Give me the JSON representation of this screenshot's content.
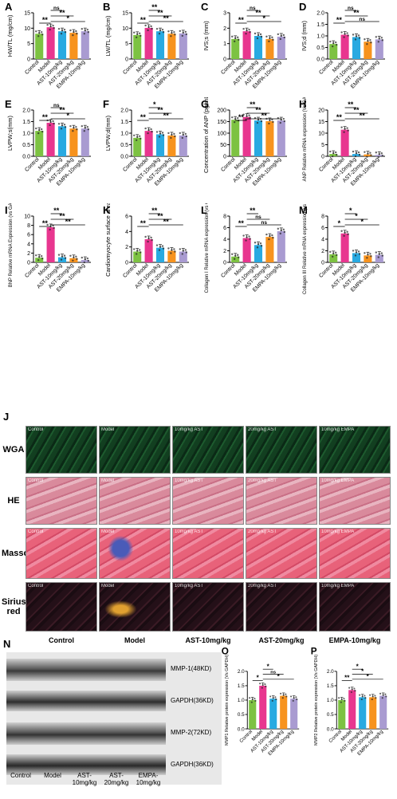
{
  "charts": [
    {
      "id": "A",
      "ylabel": "HW/TL (mg/cm)",
      "yticks": [
        "0",
        "5",
        "10",
        "15"
      ],
      "ymax": 15,
      "values": [
        8.2,
        10.3,
        9.0,
        8.5,
        9.0
      ],
      "sig": [
        {
          "a": 0,
          "b": 1,
          "t": "**"
        },
        {
          "a": 1,
          "b": 2,
          "t": "ns"
        },
        {
          "a": 1,
          "b": 3,
          "t": "**"
        },
        {
          "a": 1,
          "b": 4,
          "t": "*"
        }
      ]
    },
    {
      "id": "B",
      "ylabel": "LW/TL (mg/cm)",
      "yticks": [
        "0",
        "5",
        "10",
        "15"
      ],
      "ymax": 15,
      "values": [
        7.8,
        10.1,
        9.0,
        8.2,
        8.3
      ],
      "sig": [
        {
          "a": 0,
          "b": 1,
          "t": "**"
        },
        {
          "a": 1,
          "b": 2,
          "t": "**"
        },
        {
          "a": 1,
          "b": 3,
          "t": "**"
        },
        {
          "a": 1,
          "b": 4,
          "t": "**"
        }
      ]
    },
    {
      "id": "C",
      "ylabel": "IVS;s (mm)",
      "yticks": [
        "0",
        "1",
        "2",
        "3"
      ],
      "ymax": 3,
      "values": [
        1.3,
        1.8,
        1.5,
        1.3,
        1.45
      ],
      "sig": [
        {
          "a": 0,
          "b": 1,
          "t": "**"
        },
        {
          "a": 1,
          "b": 2,
          "t": "ns"
        },
        {
          "a": 1,
          "b": 3,
          "t": "**"
        },
        {
          "a": 1,
          "b": 4,
          "t": "*"
        }
      ]
    },
    {
      "id": "D",
      "ylabel": "IVS;d (mm)",
      "yticks": [
        "0.0",
        "0.5",
        "1.0",
        "1.5",
        "2.0"
      ],
      "ymax": 2,
      "values": [
        0.65,
        1.05,
        0.95,
        0.75,
        0.85
      ],
      "sig": [
        {
          "a": 0,
          "b": 1,
          "t": "**"
        },
        {
          "a": 1,
          "b": 2,
          "t": "ns"
        },
        {
          "a": 1,
          "b": 3,
          "t": "**"
        },
        {
          "a": 1,
          "b": 4,
          "t": "ns"
        }
      ]
    },
    {
      "id": "E",
      "ylabel": "LVPW;s(mm)",
      "yticks": [
        "0.0",
        "0.5",
        "1.0",
        "1.5",
        "2.0"
      ],
      "ymax": 2,
      "values": [
        1.1,
        1.45,
        1.3,
        1.2,
        1.2
      ],
      "sig": [
        {
          "a": 0,
          "b": 1,
          "t": "**"
        },
        {
          "a": 1,
          "b": 2,
          "t": "ns"
        },
        {
          "a": 1,
          "b": 3,
          "t": "**"
        },
        {
          "a": 1,
          "b": 4,
          "t": "*"
        }
      ]
    },
    {
      "id": "F",
      "ylabel": "LVPW;d(mm)",
      "yticks": [
        "0.0",
        "0.5",
        "1.0",
        "1.5",
        "2.0"
      ],
      "ymax": 2,
      "values": [
        0.8,
        1.1,
        0.95,
        0.9,
        0.9
      ],
      "sig": [
        {
          "a": 0,
          "b": 1,
          "t": "**"
        },
        {
          "a": 1,
          "b": 2,
          "t": "*"
        },
        {
          "a": 1,
          "b": 3,
          "t": "**"
        },
        {
          "a": 1,
          "b": 4,
          "t": "**"
        }
      ]
    },
    {
      "id": "G",
      "ylabel": "Concentration of ANP (pg/mL)",
      "yticks": [
        "0",
        "50",
        "100",
        "150",
        "200"
      ],
      "ymax": 200,
      "values": [
        158,
        170,
        155,
        152,
        155
      ],
      "sig": [
        {
          "a": 0,
          "b": 1,
          "t": "**"
        },
        {
          "a": 1,
          "b": 2,
          "t": "**"
        },
        {
          "a": 1,
          "b": 3,
          "t": "**"
        },
        {
          "a": 1,
          "b": 4,
          "t": "**"
        }
      ]
    },
    {
      "id": "H",
      "ylabel": "ANP Relative mRNA expression (Vs GAPDH)",
      "yticks": [
        "0",
        "5",
        "10",
        "15",
        "20"
      ],
      "ymax": 20,
      "values": [
        1,
        11.5,
        1,
        0.8,
        0.6
      ],
      "sig": [
        {
          "a": 0,
          "b": 1,
          "t": "**"
        },
        {
          "a": 1,
          "b": 2,
          "t": "**"
        },
        {
          "a": 1,
          "b": 3,
          "t": "**"
        },
        {
          "a": 1,
          "b": 4,
          "t": "**"
        }
      ]
    },
    {
      "id": "I",
      "ylabel": "BNP Relative mRNA Expression (vs GAPDH)",
      "yticks": [
        "0",
        "2",
        "4",
        "6",
        "8",
        "10"
      ],
      "ymax": 10,
      "values": [
        1,
        7.6,
        1.1,
        0.9,
        0.5
      ],
      "sig": [
        {
          "a": 0,
          "b": 1,
          "t": "**"
        },
        {
          "a": 1,
          "b": 2,
          "t": "**"
        },
        {
          "a": 1,
          "b": 3,
          "t": "**"
        },
        {
          "a": 1,
          "b": 4,
          "t": "**"
        }
      ]
    },
    {
      "id": "K",
      "ylabel": "Cardiomyocyte surface area",
      "yticks": [
        "0",
        "2",
        "4",
        "6"
      ],
      "ymax": 6,
      "values": [
        1.4,
        3.0,
        1.9,
        1.5,
        1.4
      ],
      "sig": [
        {
          "a": 0,
          "b": 1,
          "t": "**"
        },
        {
          "a": 1,
          "b": 2,
          "t": "**"
        },
        {
          "a": 1,
          "b": 3,
          "t": "**"
        },
        {
          "a": 1,
          "b": 4,
          "t": "**"
        }
      ]
    },
    {
      "id": "L",
      "ylabel": "Collagen I Relative mRNA expression (vs GAPDH)",
      "yticks": [
        "0",
        "2",
        "4",
        "6",
        "8"
      ],
      "ymax": 8,
      "values": [
        1,
        4.2,
        3,
        4.4,
        5.4
      ],
      "sig": [
        {
          "a": 0,
          "b": 1,
          "t": "**"
        },
        {
          "a": 1,
          "b": 2,
          "t": "**"
        },
        {
          "a": 1,
          "b": 3,
          "t": "ns"
        },
        {
          "a": 1,
          "b": 4,
          "t": "ns"
        }
      ]
    },
    {
      "id": "M",
      "ylabel": "Collagen III Relative mRNA expression (vs GAPDH)",
      "yticks": [
        "0",
        "2",
        "4",
        "6",
        "8"
      ],
      "ymax": 8,
      "values": [
        1.4,
        5.0,
        1.6,
        1.2,
        1.3
      ],
      "sig": [
        {
          "a": 0,
          "b": 1,
          "t": "*"
        },
        {
          "a": 1,
          "b": 2,
          "t": "*"
        },
        {
          "a": 1,
          "b": 3,
          "t": "*"
        },
        {
          "a": 1,
          "b": 4,
          "t": "*"
        }
      ]
    },
    {
      "id": "O",
      "ylabel": "MMP1 Relative protein expression (Vs GAPDH)",
      "yticks": [
        "0.0",
        "0.5",
        "1.0",
        "1.5",
        "2.0"
      ],
      "ymax": 2,
      "values": [
        1.0,
        1.5,
        1.05,
        1.15,
        1.05
      ],
      "sig": [
        {
          "a": 0,
          "b": 1,
          "t": "*"
        },
        {
          "a": 1,
          "b": 2,
          "t": "*"
        },
        {
          "a": 1,
          "b": 3,
          "t": "ns"
        },
        {
          "a": 1,
          "b": 4,
          "t": "*"
        }
      ]
    },
    {
      "id": "P",
      "ylabel": "MMP2 Relative protein expression (Vs GAPDH)",
      "yticks": [
        "0.0",
        "0.5",
        "1.0",
        "1.5",
        "2.0"
      ],
      "ymax": 2,
      "values": [
        1.0,
        1.35,
        1.1,
        1.1,
        1.15
      ],
      "sig": [
        {
          "a": 0,
          "b": 1,
          "t": "**"
        },
        {
          "a": 1,
          "b": 2,
          "t": "*"
        },
        {
          "a": 1,
          "b": 3,
          "t": "*"
        },
        {
          "a": 1,
          "b": 4,
          "t": "*"
        }
      ]
    }
  ],
  "chart_data": [
    {
      "type": "bar",
      "title": "A",
      "ylabel": "HW/TL (mg/cm)",
      "categories": [
        "Control",
        "Model",
        "AST-10mg/kg",
        "AST-20mg/kg",
        "EMPA-10mg/kg"
      ],
      "values": [
        8.2,
        10.3,
        9.0,
        8.5,
        9.0
      ],
      "ylim": [
        0,
        15
      ]
    },
    {
      "type": "bar",
      "title": "B",
      "ylabel": "LW/TL (mg/cm)",
      "categories": [
        "Control",
        "Model",
        "AST-10mg/kg",
        "AST-20mg/kg",
        "EMPA-10mg/kg"
      ],
      "values": [
        7.8,
        10.1,
        9.0,
        8.2,
        8.3
      ],
      "ylim": [
        0,
        15
      ]
    },
    {
      "type": "bar",
      "title": "C",
      "ylabel": "IVS;s (mm)",
      "categories": [
        "Control",
        "Model",
        "AST-10mg/kg",
        "AST-20mg/kg",
        "EMPA-10mg/kg"
      ],
      "values": [
        1.3,
        1.8,
        1.5,
        1.3,
        1.45
      ],
      "ylim": [
        0,
        3
      ]
    },
    {
      "type": "bar",
      "title": "D",
      "ylabel": "IVS;d (mm)",
      "categories": [
        "Control",
        "Model",
        "AST-10mg/kg",
        "AST-20mg/kg",
        "EMPA-10mg/kg"
      ],
      "values": [
        0.65,
        1.05,
        0.95,
        0.75,
        0.85
      ],
      "ylim": [
        0,
        2
      ]
    },
    {
      "type": "bar",
      "title": "E",
      "ylabel": "LVPW;s(mm)",
      "categories": [
        "Control",
        "Model",
        "AST-10mg/kg",
        "AST-20mg/kg",
        "EMPA-10mg/kg"
      ],
      "values": [
        1.1,
        1.45,
        1.3,
        1.2,
        1.2
      ],
      "ylim": [
        0,
        2
      ]
    },
    {
      "type": "bar",
      "title": "F",
      "ylabel": "LVPW;d(mm)",
      "categories": [
        "Control",
        "Model",
        "AST-10mg/kg",
        "AST-20mg/kg",
        "EMPA-10mg/kg"
      ],
      "values": [
        0.8,
        1.1,
        0.95,
        0.9,
        0.9
      ],
      "ylim": [
        0,
        2
      ]
    },
    {
      "type": "bar",
      "title": "G",
      "ylabel": "Concentration of ANP (pg/mL)",
      "categories": [
        "Control",
        "Model",
        "AST-10mg/kg",
        "AST-20mg/kg",
        "EMPA-10mg/kg"
      ],
      "values": [
        158,
        170,
        155,
        152,
        155
      ],
      "ylim": [
        0,
        200
      ]
    },
    {
      "type": "bar",
      "title": "H",
      "ylabel": "ANP Relative mRNA expression (Vs GAPDH)",
      "categories": [
        "Control",
        "Model",
        "AST-10mg/kg",
        "AST-20mg/kg",
        "EMPA-10mg/kg"
      ],
      "values": [
        1,
        11.5,
        1,
        0.8,
        0.6
      ],
      "ylim": [
        0,
        20
      ]
    },
    {
      "type": "bar",
      "title": "I",
      "ylabel": "BNP Relative mRNA Expression (vs GAPDH)",
      "categories": [
        "Control",
        "Model",
        "AST-10mg/kg",
        "AST-20mg/kg",
        "EMPA-10mg/kg"
      ],
      "values": [
        1,
        7.6,
        1.1,
        0.9,
        0.5
      ],
      "ylim": [
        0,
        10
      ]
    },
    {
      "type": "bar",
      "title": "K",
      "ylabel": "Cardiomyocyte surface area",
      "categories": [
        "Control",
        "Model",
        "AST-10mg/kg",
        "AST-20mg/kg",
        "EMPA-10mg/kg"
      ],
      "values": [
        1.4,
        3.0,
        1.9,
        1.5,
        1.4
      ],
      "ylim": [
        0,
        6
      ]
    },
    {
      "type": "bar",
      "title": "L",
      "ylabel": "Collagen I Relative mRNA expression (vs GAPDH)",
      "categories": [
        "Control",
        "Model",
        "AST-10mg/kg",
        "AST-20mg/kg",
        "EMPA-10mg/kg"
      ],
      "values": [
        1,
        4.2,
        3,
        4.4,
        5.4
      ],
      "ylim": [
        0,
        8
      ]
    },
    {
      "type": "bar",
      "title": "M",
      "ylabel": "Collagen III Relative mRNA expression (vs GAPDH)",
      "categories": [
        "Control",
        "Model",
        "AST-10mg/kg",
        "AST-20mg/kg",
        "EMPA-10mg/kg"
      ],
      "values": [
        1.4,
        5.0,
        1.6,
        1.2,
        1.3
      ],
      "ylim": [
        0,
        8
      ]
    },
    {
      "type": "bar",
      "title": "O",
      "ylabel": "MMP1 Relative protein expression (Vs GAPDH)",
      "categories": [
        "Control",
        "Model",
        "AST-10mg/kg",
        "AST-20mg/kg",
        "EMPA-10mg/kg"
      ],
      "values": [
        1.0,
        1.5,
        1.05,
        1.15,
        1.05
      ],
      "ylim": [
        0,
        2
      ]
    },
    {
      "type": "bar",
      "title": "P",
      "ylabel": "MMP2 Relative protein expression (Vs GAPDH)",
      "categories": [
        "Control",
        "Model",
        "AST-10mg/kg",
        "AST-20mg/kg",
        "EMPA-10mg/kg"
      ],
      "values": [
        1.0,
        1.35,
        1.1,
        1.1,
        1.15
      ],
      "ylim": [
        0,
        2
      ]
    }
  ],
  "categories": [
    "Control",
    "Model",
    "AST-10mg/kg",
    "AST-20mg/kg",
    "EMPA-10mg/kg"
  ],
  "bar_colors": [
    "#7dc242",
    "#e8368f",
    "#29aae1",
    "#f7931e",
    "#a99bd1"
  ],
  "panel_J": {
    "label": "J",
    "rows": [
      "WGA",
      "HE",
      "Masson",
      "Sirius red"
    ],
    "cols": [
      "Control",
      "Model",
      "AST-10mg/kg",
      "AST-20mg/kg",
      "EMPA-10mg/kg"
    ],
    "wga_captions": [
      "Control",
      "Model",
      "10mg/kg AST",
      "20mg/kg AST",
      "10mg/kg EMPA"
    ],
    "tissue_captions": [
      "Control",
      "Model",
      "10mg/kg AST",
      "20mg/kg AST",
      "10mg/kg EMPA"
    ],
    "colors": {
      "WGA": "#0f3a1e",
      "HE": "#d98a9c",
      "Masson": "#e8627a",
      "Sirius red": "#2a1420"
    }
  },
  "panel_N": {
    "label": "N",
    "bands": [
      "MMP-1(48KD)",
      "GAPDH(36KD)",
      "MMP-2(72KD)",
      "GAPDH(36KD)"
    ],
    "lanes": [
      "Control",
      "Model",
      "AST-\n10mg/kg",
      "AST-\n20mg/kg",
      "EMPA-\n10mg/kg"
    ]
  }
}
